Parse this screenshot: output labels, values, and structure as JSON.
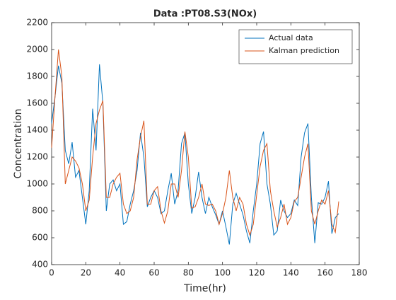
{
  "chart_data": {
    "type": "line",
    "title": "Data :PT08.S3(NOx)",
    "xlabel": "Time(hr)",
    "ylabel": "Concentration",
    "x": [
      0,
      2,
      4,
      6,
      8,
      10,
      12,
      14,
      16,
      18,
      20,
      22,
      24,
      26,
      28,
      30,
      32,
      34,
      36,
      38,
      40,
      42,
      44,
      46,
      48,
      50,
      52,
      54,
      56,
      58,
      60,
      62,
      64,
      66,
      68,
      70,
      72,
      74,
      76,
      78,
      80,
      82,
      84,
      86,
      88,
      90,
      92,
      94,
      96,
      98,
      100,
      102,
      104,
      106,
      108,
      110,
      112,
      114,
      116,
      118,
      120,
      122,
      124,
      126,
      128,
      130,
      132,
      134,
      136,
      138,
      140,
      142,
      144,
      146,
      148,
      150,
      152,
      154,
      156,
      158,
      160,
      162,
      164,
      166,
      168
    ],
    "series": [
      {
        "name": "Actual data",
        "color": "#0072bd",
        "values": [
          1450,
          1650,
          1880,
          1750,
          1250,
          1150,
          1310,
          1050,
          1100,
          900,
          700,
          950,
          1560,
          1250,
          1890,
          1600,
          800,
          1000,
          1030,
          950,
          1000,
          700,
          720,
          850,
          950,
          1100,
          1380,
          1200,
          830,
          900,
          950,
          900,
          780,
          800,
          950,
          1080,
          850,
          950,
          1300,
          1380,
          1000,
          780,
          900,
          1090,
          900,
          780,
          900,
          830,
          770,
          700,
          800,
          680,
          550,
          850,
          930,
          850,
          770,
          650,
          560,
          800,
          1000,
          1300,
          1390,
          1000,
          850,
          620,
          650,
          880,
          800,
          750,
          780,
          880,
          840,
          1200,
          1380,
          1450,
          900,
          560,
          860,
          850,
          900,
          1020,
          630,
          750,
          780
        ]
      },
      {
        "name": "Kalman prediction",
        "color": "#d95319",
        "values": [
          1270,
          1650,
          2000,
          1800,
          1000,
          1100,
          1200,
          1170,
          1120,
          1000,
          800,
          880,
          1200,
          1450,
          1550,
          1620,
          900,
          900,
          1000,
          1050,
          1080,
          850,
          780,
          800,
          900,
          1180,
          1350,
          1470,
          850,
          850,
          950,
          980,
          800,
          710,
          800,
          1000,
          1000,
          900,
          1100,
          1390,
          1200,
          820,
          830,
          900,
          1000,
          850,
          840,
          850,
          800,
          700,
          780,
          900,
          1100,
          900,
          800,
          900,
          850,
          700,
          620,
          700,
          920,
          1130,
          1250,
          1300,
          950,
          800,
          680,
          750,
          850,
          700,
          750,
          870,
          900,
          1050,
          1200,
          1300,
          800,
          700,
          800,
          880,
          850,
          950,
          700,
          640,
          870
        ]
      }
    ],
    "xlim": [
      0,
      180
    ],
    "xticks": [
      0,
      20,
      40,
      60,
      80,
      100,
      120,
      140,
      160,
      180
    ],
    "ylim": [
      400,
      2200
    ],
    "yticks": [
      400,
      600,
      800,
      1000,
      1200,
      1400,
      1600,
      1800,
      2000,
      2200
    ],
    "legend": "top-right",
    "grid": false
  }
}
